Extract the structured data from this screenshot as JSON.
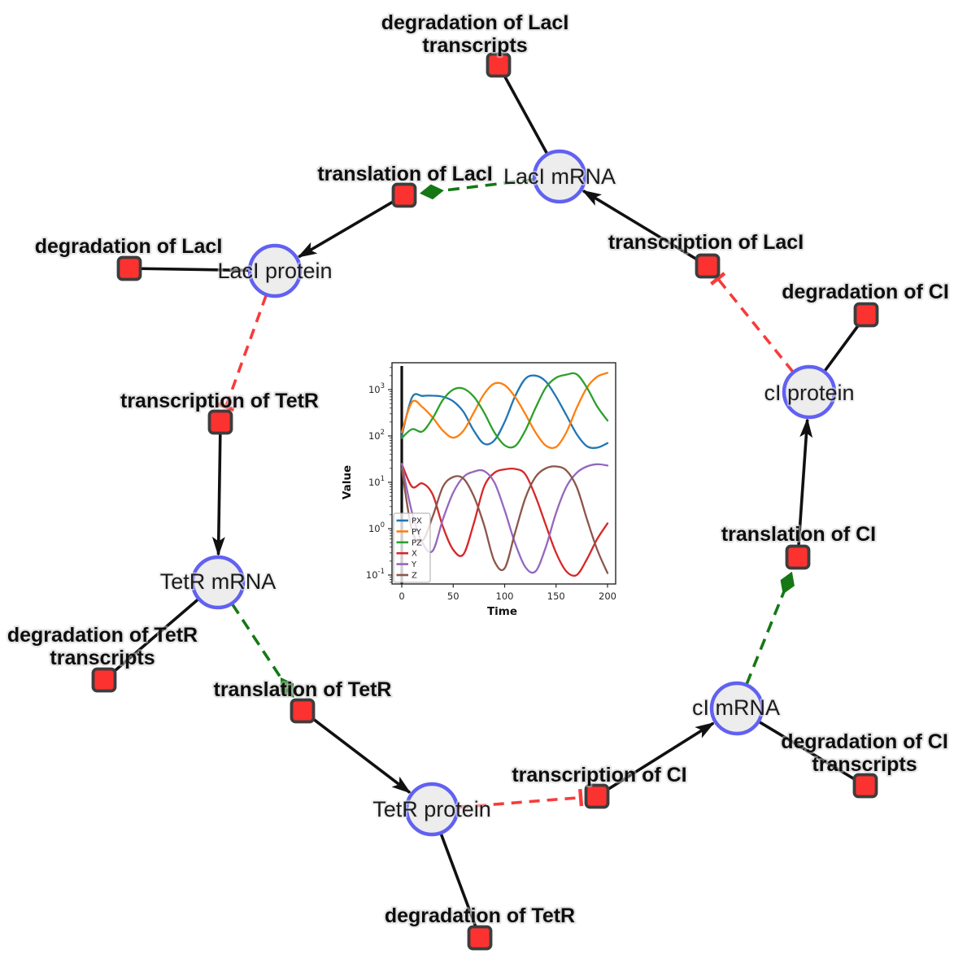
{
  "diagram": {
    "species": [
      {
        "label": "LacI mRNA"
      },
      {
        "label": "LacI protein"
      },
      {
        "label": "TetR mRNA"
      },
      {
        "label": "TetR protein"
      },
      {
        "label": "cI mRNA"
      },
      {
        "label": "cI protein"
      }
    ],
    "reactions": [
      {
        "label_line1": "degradation of LacI",
        "label_line2": "transcripts"
      },
      {
        "label_line1": "translation of LacI"
      },
      {
        "label_line1": "degradation of LacI"
      },
      {
        "label_line1": "transcription of LacI"
      },
      {
        "label_line1": "degradation of CI"
      },
      {
        "label_line1": "transcription of TetR"
      },
      {
        "label_line1": "degradation of TetR",
        "label_line2": "transcripts"
      },
      {
        "label_line1": "translation of TetR"
      },
      {
        "label_line1": "degradation of TetR"
      },
      {
        "label_line1": "transcription of CI"
      },
      {
        "label_line1": "degradation of CI",
        "label_line2": "transcripts"
      },
      {
        "label_line1": "translation of CI"
      }
    ],
    "edges": [
      {
        "from": "LacI mRNA",
        "to": "degradation of LacI transcripts",
        "type": "consumption"
      },
      {
        "from": "transcription of LacI",
        "to": "LacI mRNA",
        "type": "production"
      },
      {
        "from": "LacI mRNA",
        "to": "translation of LacI",
        "type": "modifier"
      },
      {
        "from": "translation of LacI",
        "to": "LacI protein",
        "type": "production"
      },
      {
        "from": "LacI protein",
        "to": "degradation of LacI",
        "type": "consumption"
      },
      {
        "from": "LacI protein",
        "to": "transcription of TetR",
        "type": "inhibition"
      },
      {
        "from": "transcription of TetR",
        "to": "TetR mRNA",
        "type": "production"
      },
      {
        "from": "TetR mRNA",
        "to": "degradation of TetR transcripts",
        "type": "consumption"
      },
      {
        "from": "TetR mRNA",
        "to": "translation of TetR",
        "type": "modifier"
      },
      {
        "from": "translation of TetR",
        "to": "TetR protein",
        "type": "production"
      },
      {
        "from": "TetR protein",
        "to": "degradation of TetR",
        "type": "consumption"
      },
      {
        "from": "TetR protein",
        "to": "transcription of CI",
        "type": "inhibition"
      },
      {
        "from": "transcription of CI",
        "to": "cI mRNA",
        "type": "production"
      },
      {
        "from": "cI mRNA",
        "to": "degradation of CI transcripts",
        "type": "consumption"
      },
      {
        "from": "cI mRNA",
        "to": "translation of CI",
        "type": "modifier"
      },
      {
        "from": "translation of CI",
        "to": "cI protein",
        "type": "production"
      },
      {
        "from": "cI protein",
        "to": "degradation of CI",
        "type": "consumption"
      },
      {
        "from": "cI protein",
        "to": "transcription of LacI",
        "type": "inhibition"
      }
    ],
    "colors": {
      "species_fill": "#ededed",
      "species_border": "#6161f2",
      "reaction_fill": "#fb3230",
      "reaction_border": "#3d3d3d",
      "production_consumption_edge": "#111111",
      "modifier_edge": "#157815",
      "inhibition_edge": "#f83b3b"
    }
  },
  "chart_data": {
    "type": "line",
    "title": "",
    "xlabel": "Time",
    "ylabel": "Value",
    "yscale": "log",
    "xlim": [
      0,
      200
    ],
    "ylim": [
      0.065,
      3800
    ],
    "xticks": [
      0,
      50,
      100,
      150,
      200
    ],
    "ytick_exponents": [
      3,
      2,
      1,
      0,
      -1
    ],
    "grid": false,
    "legend_position": "lower left",
    "annotations": [
      "thick vertical black line at t=0"
    ],
    "x": [
      0,
      10,
      20,
      30,
      40,
      50,
      60,
      70,
      80,
      90,
      100,
      110,
      120,
      130,
      140,
      150,
      160,
      170,
      180,
      190,
      200
    ],
    "series": [
      {
        "name": "PX",
        "color": "#1f77b4",
        "values": [
          100,
          680,
          730,
          740,
          700,
          560,
          330,
          130,
          68,
          80,
          200,
          700,
          1700,
          2000,
          1500,
          700,
          280,
          110,
          60,
          56,
          70
        ]
      },
      {
        "name": "PY",
        "color": "#ff7f0e",
        "values": [
          120,
          540,
          420,
          250,
          130,
          92,
          130,
          320,
          800,
          1350,
          1250,
          700,
          300,
          120,
          62,
          58,
          120,
          400,
          1100,
          1900,
          2300
        ]
      },
      {
        "name": "PZ",
        "color": "#2ca02c",
        "values": [
          90,
          140,
          125,
          240,
          600,
          1000,
          1050,
          700,
          320,
          120,
          63,
          60,
          130,
          400,
          1100,
          1800,
          2100,
          2150,
          1100,
          430,
          215
        ]
      },
      {
        "name": "X",
        "color": "#d62728",
        "values": [
          25,
          8,
          9.5,
          5.5,
          1.1,
          0.35,
          0.28,
          1.3,
          8,
          16,
          19,
          19.5,
          15,
          5,
          1.2,
          0.3,
          0.12,
          0.1,
          0.22,
          0.6,
          1.3
        ]
      },
      {
        "name": "Y",
        "color": "#9467bd",
        "values": [
          25,
          2.2,
          0.5,
          0.33,
          1.6,
          6,
          13,
          17,
          17.5,
          10,
          2.5,
          0.5,
          0.15,
          0.12,
          0.4,
          2.2,
          8,
          16,
          22,
          24.5,
          23
        ]
      },
      {
        "name": "Z",
        "color": "#8c564b",
        "values": [
          20,
          0.9,
          0.55,
          1.8,
          8,
          13,
          12,
          5,
          1.2,
          0.2,
          0.14,
          0.8,
          4.5,
          13,
          20,
          22,
          18,
          8,
          1.6,
          0.35,
          0.11
        ]
      }
    ]
  }
}
